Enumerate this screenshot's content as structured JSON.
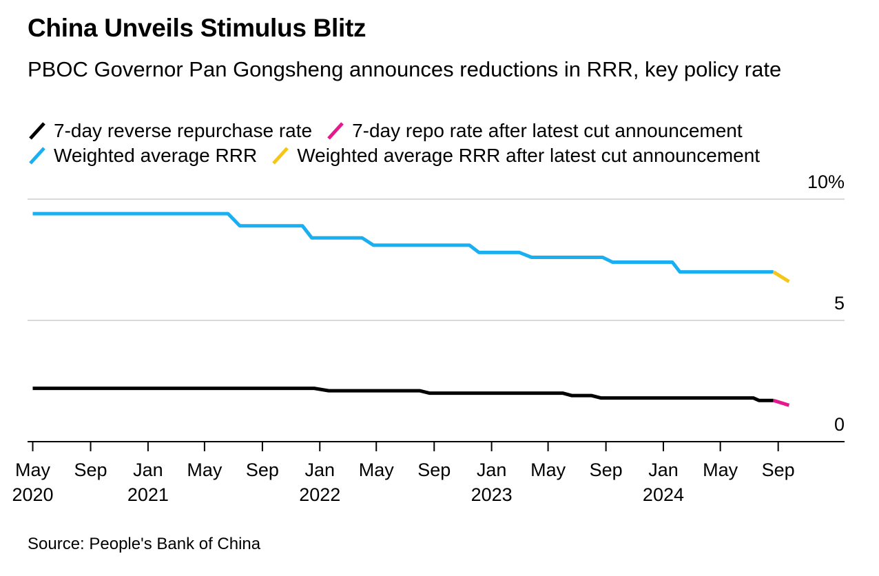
{
  "header": {
    "title": "China Unveils Stimulus Blitz",
    "subtitle": "PBOC Governor Pan Gongsheng announces reductions in RRR, key policy rate"
  },
  "footer": {
    "source": "Source: People's Bank of China"
  },
  "chart_data": {
    "type": "line",
    "title": "China Unveils Stimulus Blitz",
    "subtitle": "PBOC Governor Pan Gongsheng announces reductions in RRR, key policy rate",
    "xlabel": "",
    "ylabel": "",
    "ylim": [
      0,
      10
    ],
    "xlim": [
      "2020-04-20",
      "2025-01-20"
    ],
    "grid": true,
    "legend_position": "top-left",
    "y_ticks": [
      {
        "value": 10,
        "label": "10%"
      },
      {
        "value": 5,
        "label": "5"
      },
      {
        "value": 0,
        "label": "0"
      }
    ],
    "x_ticks": [
      {
        "date": "2020-05-01",
        "month": "May",
        "year": "2020"
      },
      {
        "date": "2020-09-01",
        "month": "Sep",
        "year": ""
      },
      {
        "date": "2021-01-01",
        "month": "Jan",
        "year": "2021"
      },
      {
        "date": "2021-05-01",
        "month": "May",
        "year": ""
      },
      {
        "date": "2021-09-01",
        "month": "Sep",
        "year": ""
      },
      {
        "date": "2022-01-01",
        "month": "Jan",
        "year": "2022"
      },
      {
        "date": "2022-05-01",
        "month": "May",
        "year": ""
      },
      {
        "date": "2022-09-01",
        "month": "Sep",
        "year": ""
      },
      {
        "date": "2023-01-01",
        "month": "Jan",
        "year": "2023"
      },
      {
        "date": "2023-05-01",
        "month": "May",
        "year": ""
      },
      {
        "date": "2023-09-01",
        "month": "Sep",
        "year": ""
      },
      {
        "date": "2024-01-01",
        "month": "Jan",
        "year": "2024"
      },
      {
        "date": "2024-05-01",
        "month": "May",
        "year": ""
      },
      {
        "date": "2024-09-01",
        "month": "Sep",
        "year": ""
      }
    ],
    "series": [
      {
        "name": "7-day reverse repurchase rate",
        "color": "#000000",
        "points": [
          {
            "x": "2020-05-01",
            "y": 2.2
          },
          {
            "x": "2021-12-20",
            "y": 2.2
          },
          {
            "x": "2022-01-20",
            "y": 2.1
          },
          {
            "x": "2022-08-01",
            "y": 2.1
          },
          {
            "x": "2022-08-22",
            "y": 2.0
          },
          {
            "x": "2023-06-01",
            "y": 2.0
          },
          {
            "x": "2023-06-20",
            "y": 1.9
          },
          {
            "x": "2023-08-01",
            "y": 1.9
          },
          {
            "x": "2023-08-21",
            "y": 1.8
          },
          {
            "x": "2024-07-10",
            "y": 1.8
          },
          {
            "x": "2024-07-22",
            "y": 1.7
          },
          {
            "x": "2024-08-22",
            "y": 1.7
          }
        ]
      },
      {
        "name": "7-day repo rate after latest cut announcement",
        "color": "#e5198c",
        "points": [
          {
            "x": "2024-08-22",
            "y": 1.7
          },
          {
            "x": "2024-09-24",
            "y": 1.5
          }
        ]
      },
      {
        "name": "Weighted average RRR",
        "color": "#1aaff0",
        "points": [
          {
            "x": "2020-05-01",
            "y": 9.4
          },
          {
            "x": "2021-06-20",
            "y": 9.4
          },
          {
            "x": "2021-07-15",
            "y": 8.9
          },
          {
            "x": "2021-11-25",
            "y": 8.9
          },
          {
            "x": "2021-12-15",
            "y": 8.4
          },
          {
            "x": "2022-04-01",
            "y": 8.4
          },
          {
            "x": "2022-04-25",
            "y": 8.1
          },
          {
            "x": "2022-11-15",
            "y": 8.1
          },
          {
            "x": "2022-12-05",
            "y": 7.8
          },
          {
            "x": "2023-03-01",
            "y": 7.8
          },
          {
            "x": "2023-03-27",
            "y": 7.6
          },
          {
            "x": "2023-08-25",
            "y": 7.6
          },
          {
            "x": "2023-09-15",
            "y": 7.4
          },
          {
            "x": "2024-01-20",
            "y": 7.4
          },
          {
            "x": "2024-02-05",
            "y": 7.0
          },
          {
            "x": "2024-08-22",
            "y": 7.0
          }
        ]
      },
      {
        "name": "Weighted average RRR after latest cut announcement",
        "color": "#f5c518",
        "points": [
          {
            "x": "2024-08-22",
            "y": 7.0
          },
          {
            "x": "2024-09-24",
            "y": 6.6
          }
        ]
      }
    ]
  }
}
